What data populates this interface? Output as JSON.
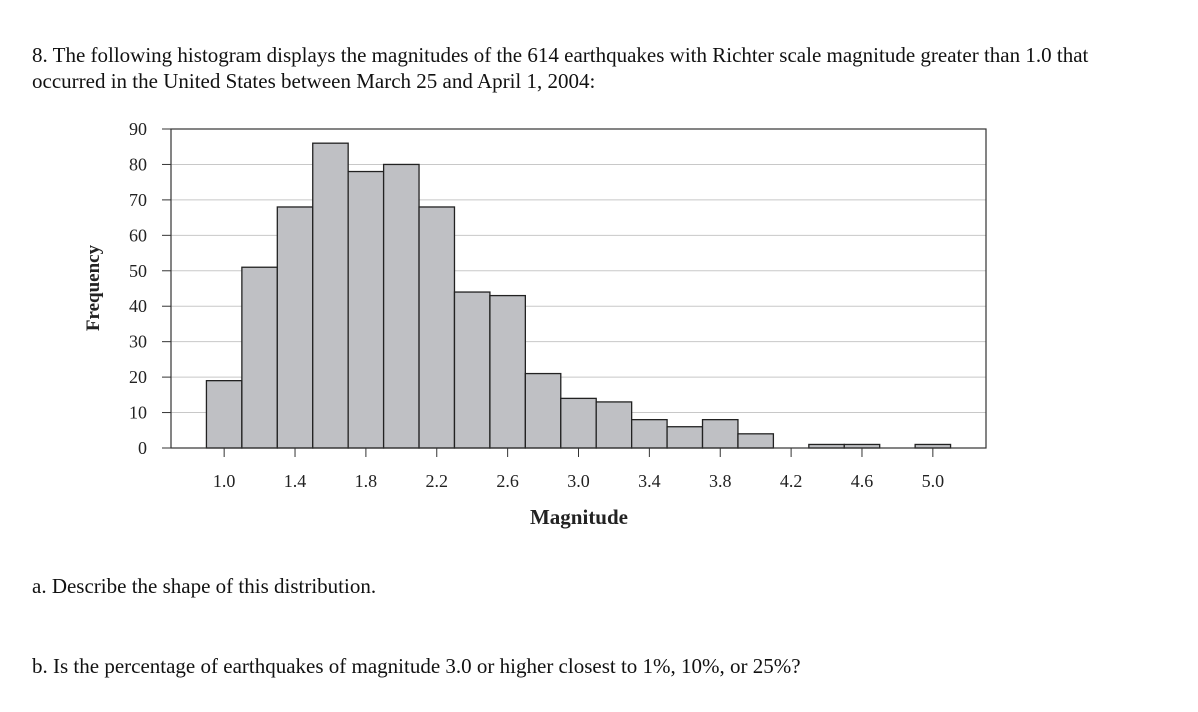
{
  "question": {
    "intro": "8. The following histogram displays the magnitudes of the 614 earthquakes with Richter scale magnitude greater than 1.0 that occurred in the United States between March 25 and April 1, 2004:",
    "part_a": "a. Describe the shape of this distribution.",
    "part_b": "b.  Is the percentage of earthquakes of magnitude 3.0 or higher closest to 1%, 10%, or 25%?"
  },
  "chart_data": {
    "type": "bar",
    "title": "",
    "xlabel": "Magnitude",
    "ylabel": "Frequency",
    "ylim": [
      0,
      90
    ],
    "xlim": [
      0.7,
      5.3
    ],
    "bin_width": 0.2,
    "bins": [
      {
        "start": 0.9,
        "value": 19
      },
      {
        "start": 1.1,
        "value": 51
      },
      {
        "start": 1.3,
        "value": 68
      },
      {
        "start": 1.5,
        "value": 86
      },
      {
        "start": 1.7,
        "value": 78
      },
      {
        "start": 1.9,
        "value": 80
      },
      {
        "start": 2.1,
        "value": 68
      },
      {
        "start": 2.3,
        "value": 44
      },
      {
        "start": 2.5,
        "value": 43
      },
      {
        "start": 2.7,
        "value": 21
      },
      {
        "start": 2.9,
        "value": 14
      },
      {
        "start": 3.1,
        "value": 13
      },
      {
        "start": 3.3,
        "value": 8
      },
      {
        "start": 3.5,
        "value": 6
      },
      {
        "start": 3.7,
        "value": 8
      },
      {
        "start": 3.9,
        "value": 4
      },
      {
        "start": 4.1,
        "value": 0
      },
      {
        "start": 4.3,
        "value": 1
      },
      {
        "start": 4.5,
        "value": 1
      },
      {
        "start": 4.7,
        "value": 0
      },
      {
        "start": 4.9,
        "value": 1
      }
    ],
    "x_ticks": [
      1.0,
      1.4,
      1.8,
      2.2,
      2.6,
      3.0,
      3.4,
      3.8,
      4.2,
      4.6,
      5.0
    ],
    "x_tick_labels": [
      "1.0",
      "1.4",
      "1.8",
      "2.2",
      "2.6",
      "3.0",
      "3.4",
      "3.8",
      "4.2",
      "4.6",
      "5.0"
    ],
    "y_ticks": [
      0,
      10,
      20,
      30,
      40,
      50,
      60,
      70,
      80,
      90
    ],
    "y_tick_labels": [
      "0",
      "10",
      "20",
      "30",
      "40",
      "50",
      "60",
      "70",
      "80",
      "90"
    ],
    "grid": true,
    "colors": {
      "bar_fill": "#bfc0c4",
      "bar_stroke": "#222222",
      "grid": "#c8c8c8",
      "frame": "#333333"
    }
  }
}
